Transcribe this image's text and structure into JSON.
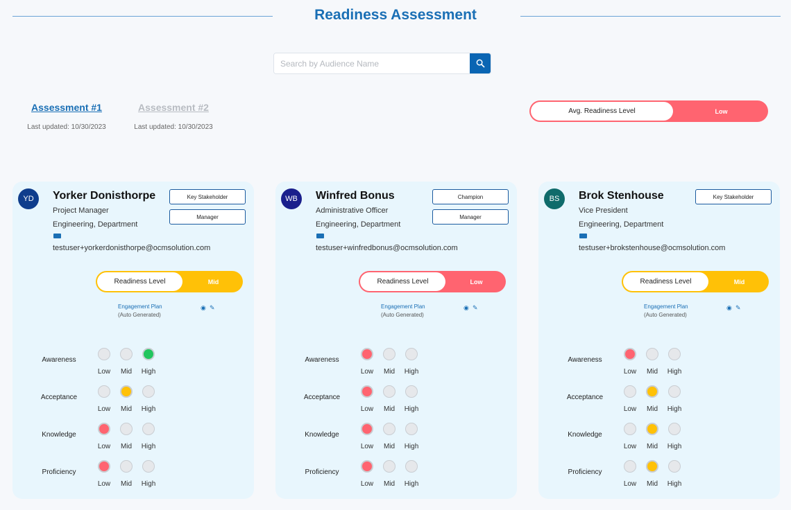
{
  "page": {
    "title": "Readiness Assessment"
  },
  "search": {
    "placeholder": "Search by Audience Name",
    "icon": "search-icon"
  },
  "assessments": [
    {
      "label": "Assessment #1",
      "updated": "Last updated: 10/30/2023",
      "active": true
    },
    {
      "label": "Assessment #2",
      "updated": "Last updated: 10/30/2023",
      "active": false
    }
  ],
  "avg": {
    "label": "Avg. Readiness Level",
    "value": "Low",
    "color": "#ff6470"
  },
  "colors": {
    "Low": "#ff6470",
    "Mid": "#ffc107",
    "High": "#22c55e"
  },
  "level_labels": [
    "Low",
    "Mid",
    "High"
  ],
  "cards": [
    {
      "initials": "YD",
      "avatar_color": "#0f3d8c",
      "name": "Yorker Donisthorpe",
      "title": "Project Manager",
      "dept": "Engineering, Department",
      "email": "testuser+yorkerdonisthorpe@ocmsolution.com",
      "tags": [
        "Key Stakeholder",
        "Manager"
      ],
      "readiness_label": "Readiness Level",
      "readiness": "Mid",
      "plan": "Engagement Plan",
      "plan_sub": "(Auto Generated)",
      "metrics": [
        {
          "name": "Awareness",
          "level": "High"
        },
        {
          "name": "Acceptance",
          "level": "Mid"
        },
        {
          "name": "Knowledge",
          "level": "Low"
        },
        {
          "name": "Proficiency",
          "level": "Low"
        }
      ]
    },
    {
      "initials": "WB",
      "avatar_color": "#1a1f8c",
      "name": "Winfred Bonus",
      "title": "Administrative Officer",
      "dept": "Engineering, Department",
      "email": "testuser+winfredbonus@ocmsolution.com",
      "tags": [
        "Champion",
        "Manager"
      ],
      "readiness_label": "Readiness Level",
      "readiness": "Low",
      "plan": "Engagement Plan",
      "plan_sub": "(Auto Generated)",
      "metrics": [
        {
          "name": "Awareness",
          "level": "Low"
        },
        {
          "name": "Acceptance",
          "level": "Low"
        },
        {
          "name": "Knowledge",
          "level": "Low"
        },
        {
          "name": "Proficiency",
          "level": "Low"
        }
      ]
    },
    {
      "initials": "BS",
      "avatar_color": "#0f6b6b",
      "name": "Brok Stenhouse",
      "title": "Vice President",
      "dept": "Engineering, Department",
      "email": "testuser+brokstenhouse@ocmsolution.com",
      "tags": [
        "Key Stakeholder"
      ],
      "readiness_label": "Readiness Level",
      "readiness": "Mid",
      "plan": "Engagement Plan",
      "plan_sub": "(Auto Generated)",
      "metrics": [
        {
          "name": "Awareness",
          "level": "Low"
        },
        {
          "name": "Acceptance",
          "level": "Mid"
        },
        {
          "name": "Knowledge",
          "level": "Mid"
        },
        {
          "name": "Proficiency",
          "level": "Mid"
        }
      ]
    }
  ]
}
